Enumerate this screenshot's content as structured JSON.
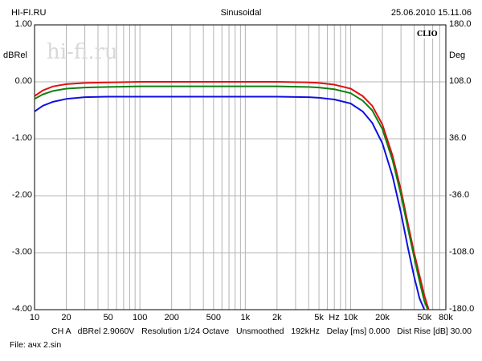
{
  "header": {
    "left": "HI-FI.RU",
    "center": "Sinusoidal",
    "right": "25.06.2010 15.11.06"
  },
  "watermark": "hi-fi.ru",
  "brand": "CLIO",
  "footer": {
    "params": "CH A   dBRel 2.9060V   Resolution 1/24 Octave   Unsmoothed   192kHz   Delay [ms] 0.000   Dist Rise [dB] 30.00",
    "file": "File: ачх 2.sin"
  },
  "chart_data": {
    "type": "line",
    "ylabel": "dBRel",
    "ylabel_right": "Deg",
    "xunit": "Hz",
    "xscale": "log",
    "xlim": [
      10,
      80000
    ],
    "ylim": [
      -4.0,
      1.0
    ],
    "ylim_right": [
      -180.0,
      180.0
    ],
    "grid": true,
    "y_ticks": [
      "1.00",
      "0.00",
      "-1.00",
      "-2.00",
      "-3.00",
      "-4.00"
    ],
    "y_ticks_right": [
      "180.0",
      "108.0",
      "36.0",
      "-36.0",
      "-108.0",
      "-180.0"
    ],
    "x_ticks": [
      {
        "value": 10,
        "label": "10"
      },
      {
        "value": 20,
        "label": "20"
      },
      {
        "value": 50,
        "label": "50"
      },
      {
        "value": 100,
        "label": "100"
      },
      {
        "value": 200,
        "label": "200"
      },
      {
        "value": 500,
        "label": "500"
      },
      {
        "value": 1000,
        "label": "1k"
      },
      {
        "value": 2000,
        "label": "2k"
      },
      {
        "value": 5000,
        "label": "5k"
      },
      {
        "value": 10000,
        "label": "10k"
      },
      {
        "value": 20000,
        "label": "20k"
      },
      {
        "value": 50000,
        "label": "50k"
      },
      {
        "value": 80000,
        "label": "80k"
      }
    ],
    "series": [
      {
        "color": "#e01010",
        "x": [
          10,
          12,
          15,
          20,
          30,
          50,
          100,
          200,
          500,
          1000,
          2000,
          4000,
          5000,
          7000,
          10000,
          13000,
          16000,
          20000,
          25000,
          30000,
          35000,
          40000,
          45000,
          50000,
          55000
        ],
        "y": [
          -0.25,
          -0.15,
          -0.08,
          -0.04,
          -0.02,
          -0.01,
          0.0,
          0.0,
          0.0,
          0.0,
          0.0,
          -0.01,
          -0.02,
          -0.05,
          -0.12,
          -0.25,
          -0.42,
          -0.75,
          -1.3,
          -1.9,
          -2.5,
          -3.0,
          -3.4,
          -3.75,
          -4.0
        ]
      },
      {
        "color": "#108010",
        "x": [
          10,
          12,
          15,
          20,
          30,
          50,
          100,
          200,
          500,
          1000,
          2000,
          4000,
          5000,
          7000,
          10000,
          13000,
          16000,
          20000,
          25000,
          30000,
          35000,
          40000,
          45000,
          50000,
          54000
        ],
        "y": [
          -0.3,
          -0.22,
          -0.16,
          -0.12,
          -0.1,
          -0.09,
          -0.08,
          -0.08,
          -0.08,
          -0.08,
          -0.08,
          -0.09,
          -0.1,
          -0.13,
          -0.2,
          -0.33,
          -0.5,
          -0.83,
          -1.38,
          -1.98,
          -2.58,
          -3.08,
          -3.5,
          -3.85,
          -4.0
        ]
      },
      {
        "color": "#1010e0",
        "x": [
          10,
          12,
          15,
          20,
          30,
          50,
          100,
          200,
          500,
          1000,
          2000,
          4000,
          5000,
          7000,
          10000,
          13000,
          16000,
          20000,
          25000,
          30000,
          35000,
          40000,
          45000,
          50000
        ],
        "y": [
          -0.52,
          -0.42,
          -0.35,
          -0.3,
          -0.27,
          -0.26,
          -0.26,
          -0.26,
          -0.26,
          -0.26,
          -0.26,
          -0.27,
          -0.28,
          -0.31,
          -0.38,
          -0.52,
          -0.72,
          -1.08,
          -1.66,
          -2.3,
          -2.92,
          -3.42,
          -3.8,
          -4.0
        ]
      }
    ]
  }
}
